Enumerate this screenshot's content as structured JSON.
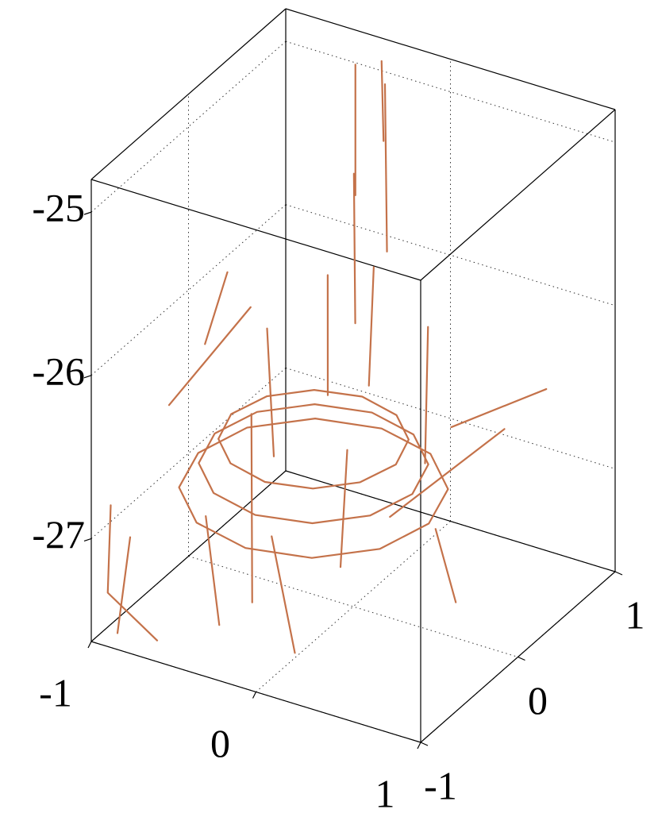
{
  "chart_data": {
    "type": "line3d",
    "color": "#c4724a",
    "grid": true,
    "box": true,
    "xlim": [
      -1,
      1
    ],
    "ylim": [
      -1,
      1
    ],
    "zlim": [
      -27.63,
      -24.8
    ],
    "xticks": [
      -1,
      0,
      1
    ],
    "yticks": [
      -1,
      0,
      1
    ],
    "zticks": [
      -27,
      -26,
      -25
    ],
    "lines": [
      {
        "x": [
          0.3,
          0.22,
          0.0,
          -0.3,
          -0.6,
          -0.82,
          -0.9,
          -0.82,
          -0.6,
          -0.3,
          0.0,
          0.22,
          0.3
        ],
        "y": [
          0.1,
          0.4,
          0.62,
          0.7,
          0.62,
          0.4,
          0.1,
          -0.2,
          -0.42,
          -0.5,
          -0.42,
          -0.2,
          0.1
        ],
        "z": [
          -26.9,
          -26.9,
          -26.9,
          -26.9,
          -26.9,
          -26.9,
          -26.9,
          -26.9,
          -26.9,
          -26.9,
          -26.9,
          -26.9,
          -26.9
        ]
      },
      {
        "x": [
          0.2,
          0.13,
          -0.05,
          -0.3,
          -0.55,
          -0.73,
          -0.8,
          -0.73,
          -0.55,
          -0.3,
          -0.05,
          0.13,
          0.2
        ],
        "y": [
          0.1,
          0.35,
          0.53,
          0.6,
          0.53,
          0.35,
          0.1,
          -0.15,
          -0.33,
          -0.4,
          -0.33,
          -0.15,
          0.1
        ],
        "z": [
          -26.75,
          -26.75,
          -26.75,
          -26.75,
          -26.75,
          -26.75,
          -26.75,
          -26.75,
          -26.75,
          -26.75,
          -26.75,
          -26.75,
          -26.75
        ]
      },
      {
        "x": [
          0.4,
          0.31,
          0.05,
          -0.3,
          -0.65,
          -0.91,
          -1.0,
          -0.91,
          -0.65,
          -0.3,
          0.05,
          0.31,
          0.4
        ],
        "y": [
          0.1,
          0.45,
          0.71,
          0.8,
          0.71,
          0.45,
          0.1,
          -0.25,
          -0.51,
          -0.6,
          -0.51,
          -0.25,
          0.1
        ],
        "z": [
          -27.05,
          -27.05,
          -27.05,
          -27.05,
          -27.05,
          -27.05,
          -27.05,
          -27.05,
          -27.05,
          -27.05,
          -27.05,
          -27.05,
          -27.05
        ]
      },
      {
        "x": [
          -0.4,
          -0.4
        ],
        "y": [
          0.7,
          0.7
        ],
        "z": [
          -24.8,
          -25.6
        ]
      },
      {
        "x": [
          -0.25,
          -0.22
        ],
        "y": [
          0.75,
          0.72
        ],
        "z": [
          -24.9,
          -25.9
        ]
      },
      {
        "x": [
          -0.35,
          -0.33
        ],
        "y": [
          0.6,
          0.58
        ],
        "z": [
          -25.4,
          -26.3
        ]
      },
      {
        "x": [
          -0.2,
          -0.2
        ],
        "y": [
          0.55,
          0.5
        ],
        "z": [
          -25.9,
          -26.6
        ]
      },
      {
        "x": [
          -0.45,
          -0.42
        ],
        "y": [
          0.5,
          0.45
        ],
        "z": [
          -26.0,
          -26.7
        ]
      },
      {
        "x": [
          -0.3,
          -0.3
        ],
        "y": [
          0.8,
          0.82
        ],
        "z": [
          -24.8,
          -25.3
        ]
      },
      {
        "x": [
          -1.0,
          -0.8
        ],
        "y": [
          -0.2,
          0.3
        ],
        "z": [
          -26.6,
          -26.2
        ]
      },
      {
        "x": [
          0.4,
          0.8
        ],
        "y": [
          -0.3,
          0.2
        ],
        "z": [
          -26.8,
          -26.4
        ]
      },
      {
        "x": [
          0.3,
          0.7
        ],
        "y": [
          0.5,
          0.8
        ],
        "z": [
          -26.7,
          -26.5
        ]
      },
      {
        "x": [
          -0.6,
          -0.4
        ],
        "y": [
          -0.5,
          -0.7
        ],
        "z": [
          -27.0,
          -27.5
        ]
      },
      {
        "x": [
          -0.2,
          0.0
        ],
        "y": [
          -0.5,
          -0.6
        ],
        "z": [
          -27.0,
          -27.6
        ]
      },
      {
        "x": [
          -1.0,
          -0.9
        ],
        "y": [
          -0.6,
          -0.9
        ],
        "z": [
          -27.2,
          -27.6
        ]
      },
      {
        "x": [
          0.2,
          0.1
        ],
        "y": [
          -0.4,
          -0.3
        ],
        "z": [
          -26.4,
          -27.2
        ]
      },
      {
        "x": [
          -0.7,
          -0.6
        ],
        "y": [
          0.3,
          0.2
        ],
        "z": [
          -26.3,
          -27.0
        ]
      },
      {
        "x": [
          0.1,
          0.2
        ],
        "y": [
          0.6,
          0.4
        ],
        "z": [
          -26.2,
          -26.9
        ]
      },
      {
        "x": [
          -0.9,
          -1.0
        ],
        "y": [
          0.0,
          0.4
        ],
        "z": [
          -26.3,
          -26.1
        ]
      },
      {
        "x": [
          0.5,
          0.8
        ],
        "y": [
          0.0,
          -0.3
        ],
        "z": [
          -27.0,
          -27.2
        ]
      },
      {
        "x": [
          -0.5,
          -0.2
        ],
        "y": [
          -0.2,
          -0.7
        ],
        "z": [
          -26.5,
          -27.3
        ]
      },
      {
        "x": [
          -1.0,
          -0.9,
          -0.6
        ],
        "y": [
          -0.8,
          -1.0,
          -1.0
        ],
        "z": [
          -26.9,
          -27.3,
          -27.5
        ]
      }
    ]
  }
}
